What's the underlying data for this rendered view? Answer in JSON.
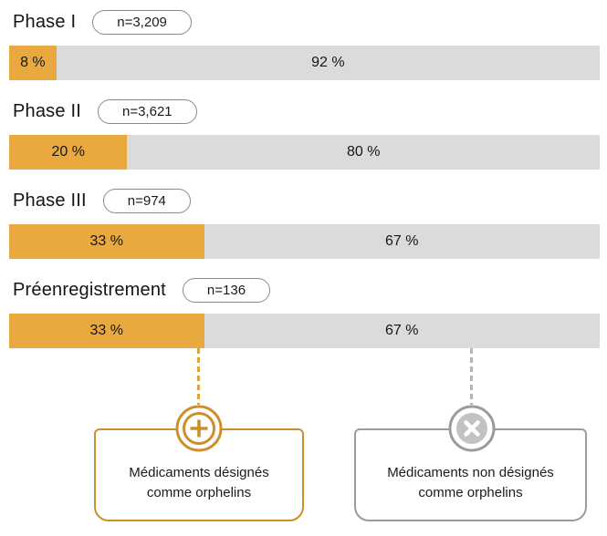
{
  "chart_data": {
    "type": "bar",
    "orientation": "horizontal_stacked",
    "unit": "percent",
    "categories": [
      "Phase I",
      "Phase II",
      "Phase III",
      "Préenregistrement"
    ],
    "sample_sizes": [
      "n=3,209",
      "n=3,621",
      "n=974",
      "n=136"
    ],
    "series": [
      {
        "name": "Médicaments désignés comme orphelins",
        "color": "#EAA93E",
        "values": [
          8,
          20,
          33,
          33
        ]
      },
      {
        "name": "Médicaments non désignés comme orphelins",
        "color": "#DBDBDB",
        "values": [
          92,
          80,
          67,
          67
        ]
      }
    ],
    "value_labels": [
      [
        "8 %",
        "92 %"
      ],
      [
        "20 %",
        "80 %"
      ],
      [
        "33 %",
        "67 %"
      ],
      [
        "33 %",
        "67 %"
      ]
    ],
    "xlim": [
      0,
      100
    ],
    "grid": false,
    "legend_position": "bottom"
  },
  "callouts": {
    "designated": {
      "icon": "plus-circle-icon",
      "line1": "Médicaments désignés",
      "line2": "comme orphelins",
      "accent_color": "#CE8F2B"
    },
    "non_designated": {
      "icon": "x-circle-icon",
      "line1": "Médicaments non désignés",
      "line2": "comme orphelins",
      "accent_color": "#9B9B9B"
    }
  },
  "colors": {
    "bar_designated": "#EAA93E",
    "bar_non_designated": "#DBDBDB",
    "pill_border": "#8A8A8A",
    "text": "#1A1A1A",
    "connector_designated": "#E2A338",
    "connector_non_designated": "#B5B5B5",
    "x_circle_fill": "#C2C2C2"
  }
}
